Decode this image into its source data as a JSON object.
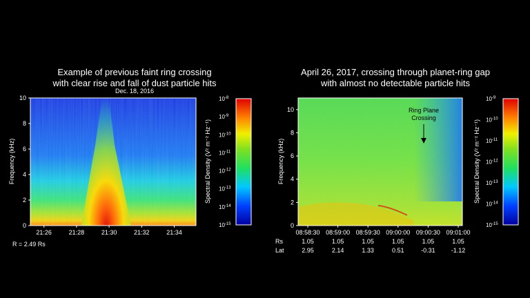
{
  "chart_data": [
    {
      "type": "heatmap",
      "title": "Example of previous faint ring crossing",
      "subtitle": "with clear rise and fall of dust particle hits",
      "date": "Dec. 18, 2016",
      "ylabel": "Frequency (kHz)",
      "ylim": [
        0,
        10
      ],
      "y_ticks": [
        "0",
        "2",
        "4",
        "6",
        "8",
        "10"
      ],
      "x_ticks": [
        "21:26",
        "21:28",
        "21:30",
        "21:32",
        "21:34"
      ],
      "x_start": "21:25:10",
      "x_end": "21:35:20",
      "footer": "R = 2.49 Rs",
      "colorbar": {
        "label": "Spectral Density (V² m⁻² Hz⁻¹)",
        "ticks": [
          "10-8",
          "10-9",
          "10-10",
          "10-11",
          "10-12",
          "10-13",
          "10-14",
          "10-15"
        ]
      }
    },
    {
      "type": "heatmap",
      "title": "April 26, 2017, crossing through planet-ring gap",
      "subtitle": "with almost no detectable particle hits",
      "ylabel": "Frequency (kHz)",
      "ylim": [
        0,
        11
      ],
      "y_ticks": [
        "0",
        "2",
        "4",
        "6",
        "8",
        "10"
      ],
      "x_ticks": [
        "08:58:30",
        "08:59:00",
        "08:59:30",
        "09:00:00",
        "09:00:30",
        "09:01:00"
      ],
      "annotation": "Ring Plane Crossing",
      "ephemeris": {
        "rows": [
          {
            "label": "Rs",
            "values": [
              "1.05",
              "1.05",
              "1.05",
              "1.05",
              "1.05",
              "1.05"
            ]
          },
          {
            "label": "Lat",
            "values": [
              "2.95",
              "2.14",
              "1.33",
              "0.51",
              "-0.31",
              "-1.12"
            ]
          }
        ]
      },
      "colorbar": {
        "label": "Spectral Density (V² m⁻² Hz⁻¹)",
        "ticks": [
          "10-9",
          "10-10",
          "10-11",
          "10-12",
          "10-13",
          "10-14",
          "10-15"
        ]
      }
    }
  ]
}
